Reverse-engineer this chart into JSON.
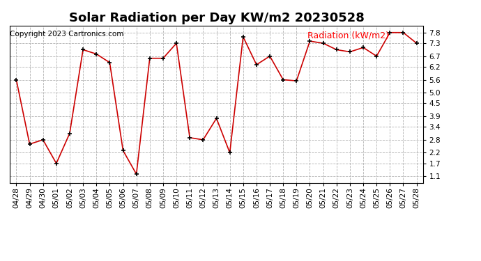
{
  "title": "Solar Radiation per Day KW/m2 20230528",
  "copyright": "Copyright 2023 Cartronics.com",
  "legend_label": "Radiation (kW/m2)",
  "dates": [
    "04/28",
    "04/29",
    "04/30",
    "05/01",
    "05/02",
    "05/03",
    "05/04",
    "05/05",
    "05/06",
    "05/07",
    "05/08",
    "05/09",
    "05/10",
    "05/11",
    "05/12",
    "05/13",
    "05/14",
    "05/15",
    "05/16",
    "05/17",
    "05/18",
    "05/19",
    "05/20",
    "05/21",
    "05/22",
    "05/23",
    "05/24",
    "05/25",
    "05/26",
    "05/27",
    "05/28"
  ],
  "values": [
    5.6,
    2.6,
    2.8,
    1.7,
    3.1,
    7.0,
    6.8,
    6.4,
    2.3,
    1.2,
    6.6,
    6.6,
    7.3,
    2.9,
    2.8,
    3.8,
    2.2,
    7.6,
    6.3,
    6.7,
    5.6,
    5.55,
    7.4,
    7.3,
    7.0,
    6.9,
    7.1,
    6.7,
    7.8,
    7.8,
    7.3
  ],
  "line_color": "#cc0000",
  "marker_color": "#000000",
  "background_color": "#ffffff",
  "grid_color": "#aaaaaa",
  "yticks": [
    1.1,
    1.7,
    2.2,
    2.8,
    3.4,
    3.9,
    4.5,
    5.0,
    5.6,
    6.2,
    6.7,
    7.3,
    7.8
  ],
  "ylim": [
    0.8,
    8.1
  ],
  "title_fontsize": 13,
  "copyright_fontsize": 7.5,
  "legend_fontsize": 9,
  "tick_fontsize": 7.5
}
